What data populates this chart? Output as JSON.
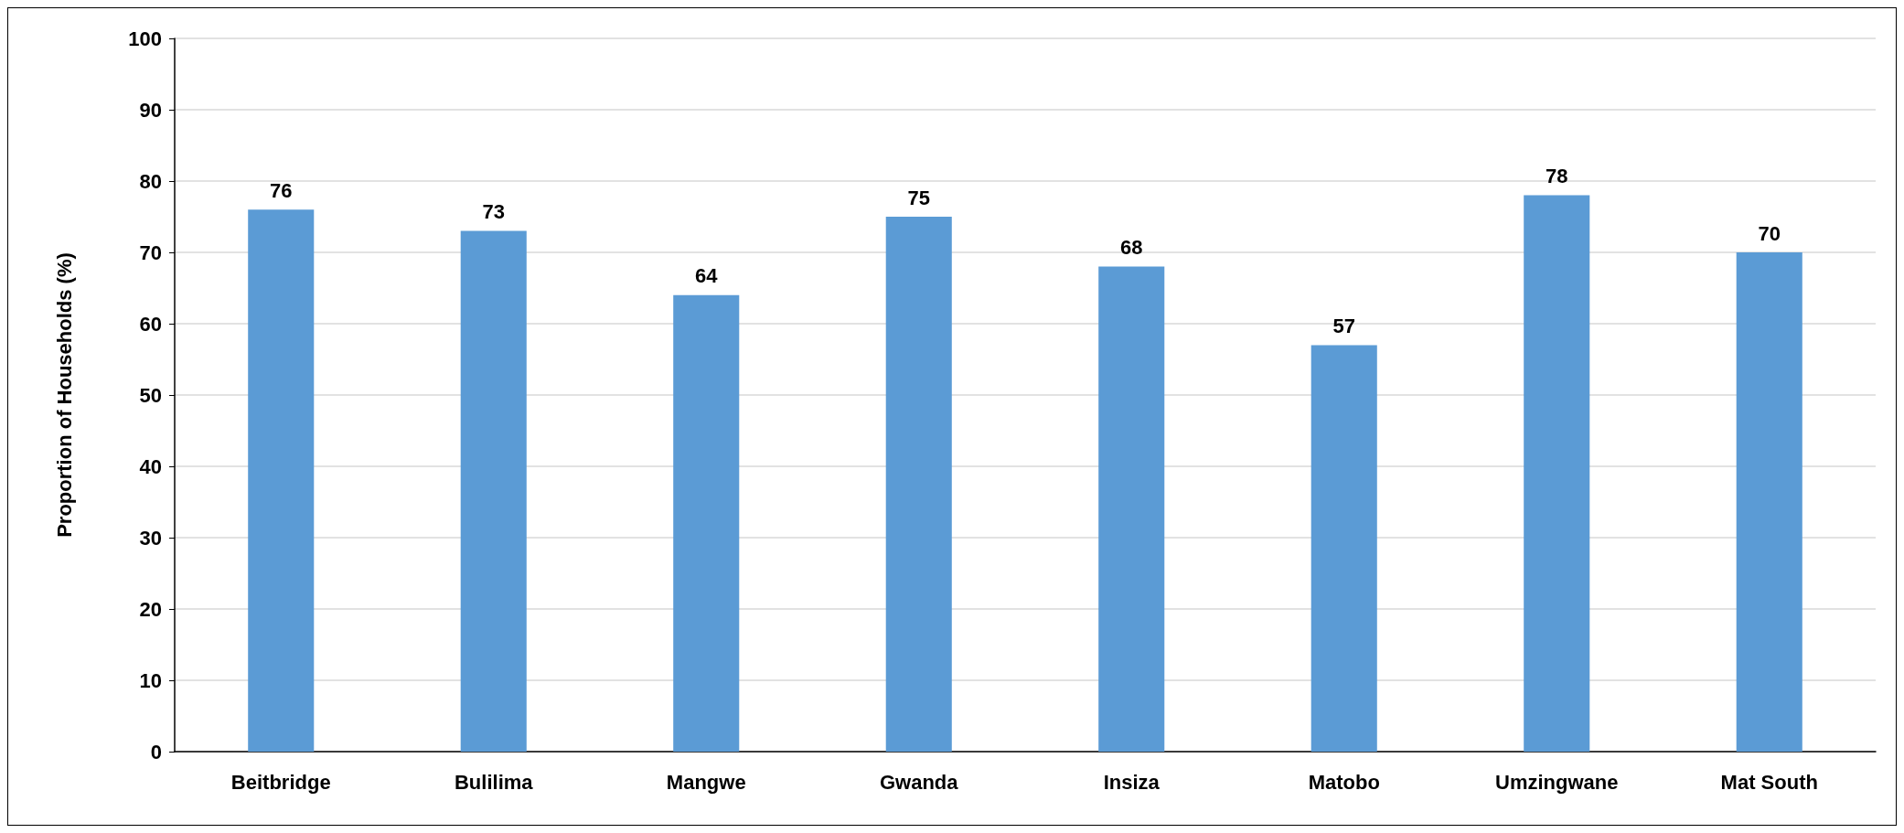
{
  "chart_data": {
    "type": "bar",
    "ylabel": "Proportion of Households (%)",
    "categories": [
      "Beitbridge",
      "Bulilima",
      "Mangwe",
      "Gwanda",
      "Insiza",
      "Matobo",
      "Umzingwane",
      "Mat South"
    ],
    "values": [
      76,
      73,
      64,
      75,
      68,
      57,
      78,
      70
    ],
    "color": "#5b9bd5",
    "ylim": [
      0,
      100
    ],
    "yticks": [
      0,
      10,
      20,
      30,
      40,
      50,
      60,
      70,
      80,
      90,
      100
    ],
    "grid": "y",
    "data_labels": true
  }
}
